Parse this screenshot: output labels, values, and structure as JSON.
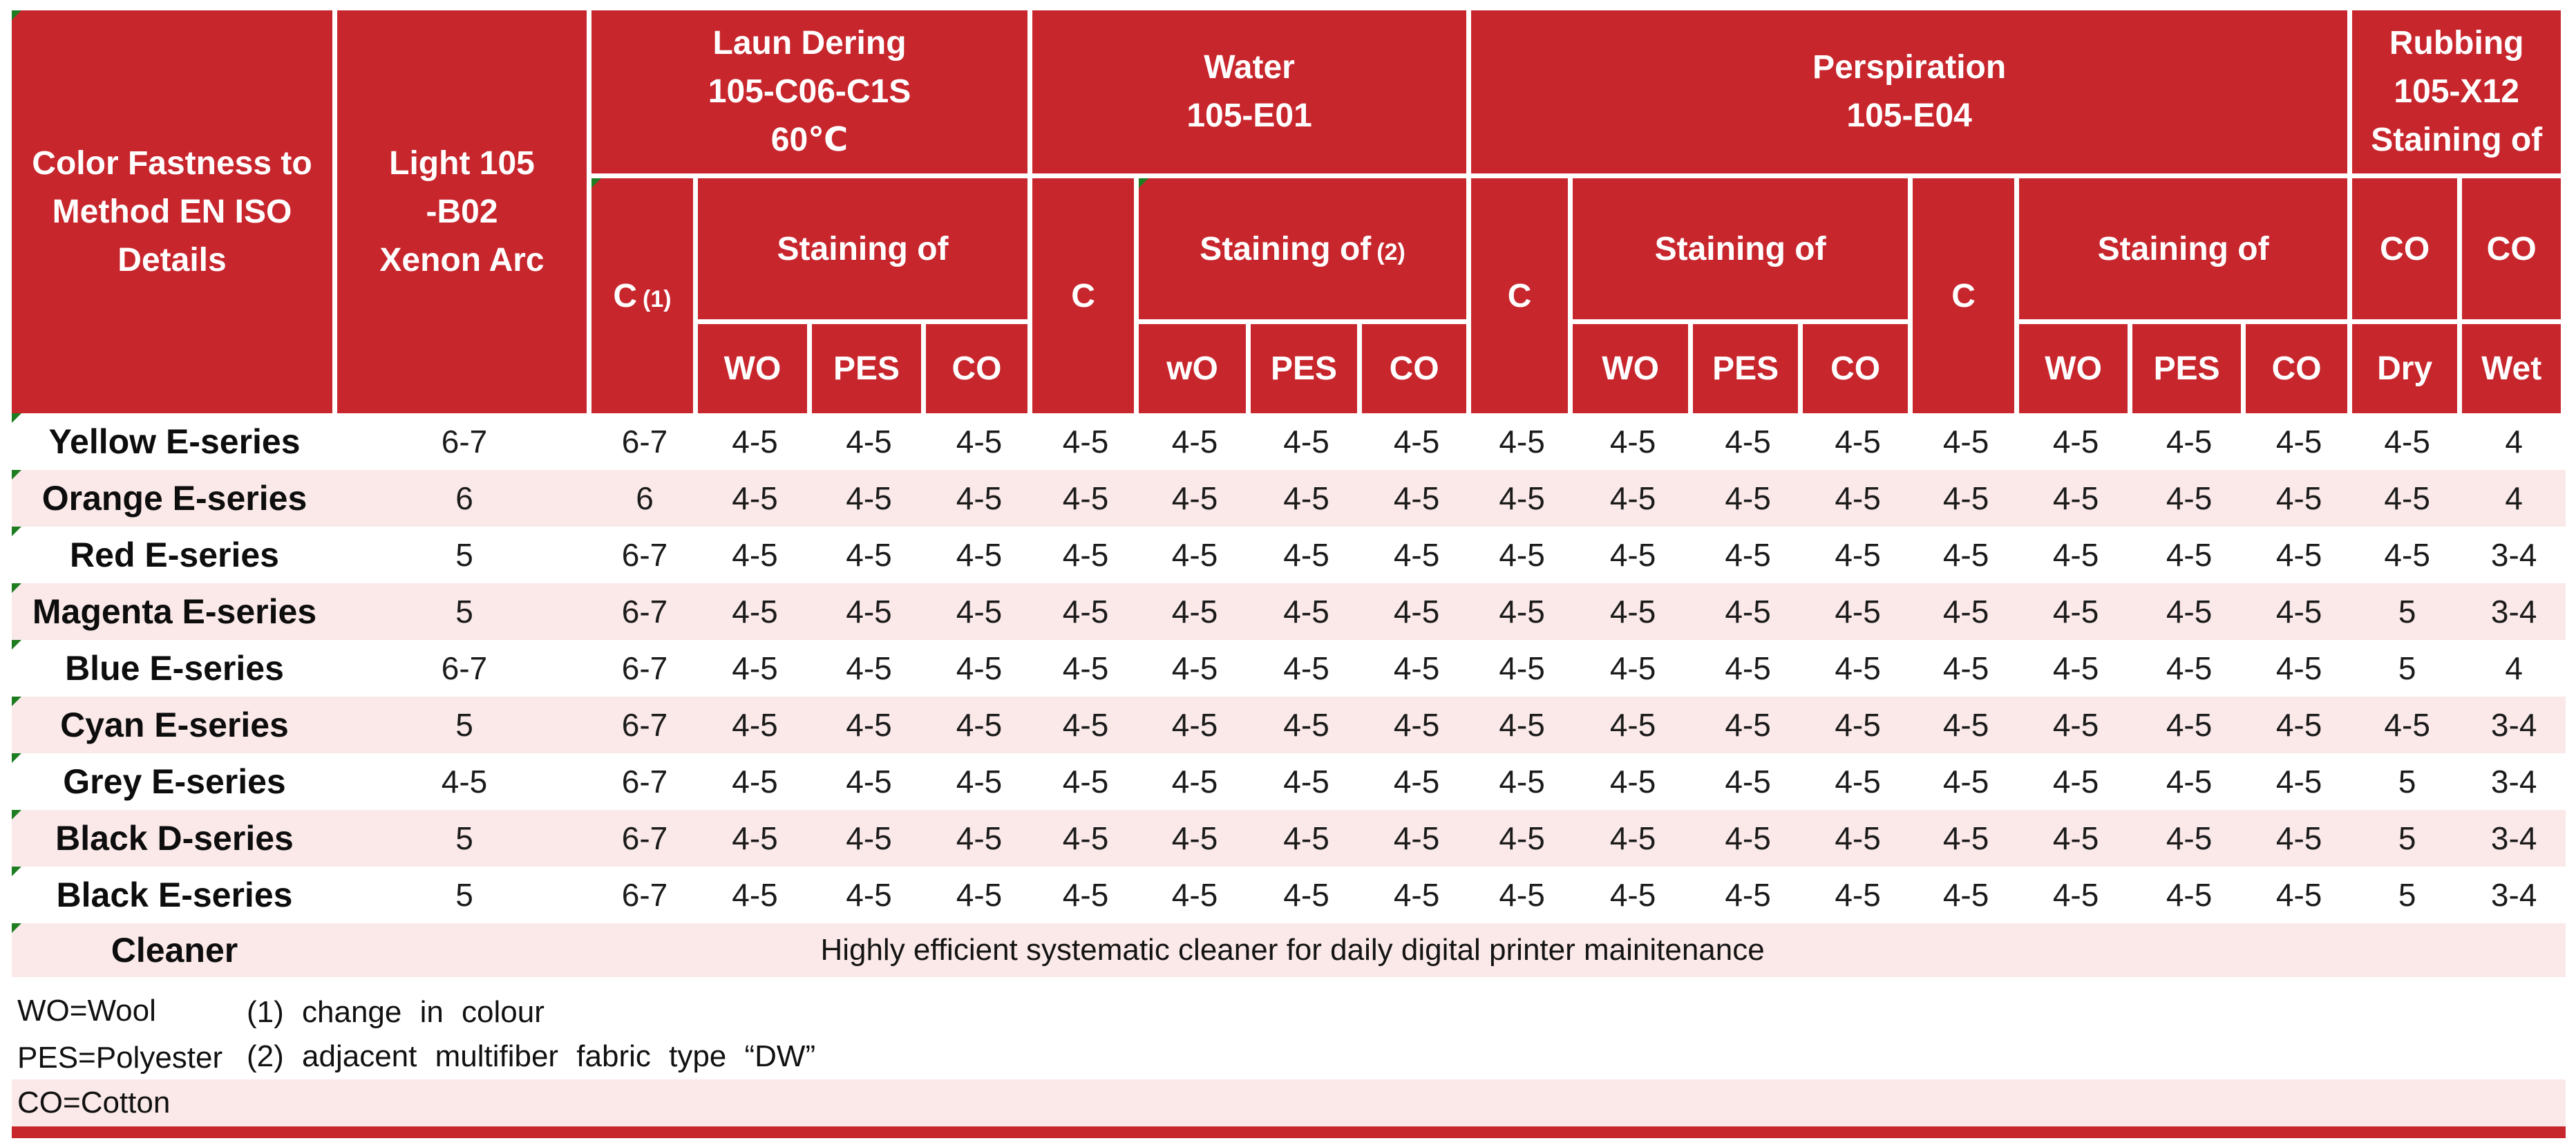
{
  "colors": {
    "header_red": "#C8262D",
    "stripe_pink": "#FAE9E8",
    "flag_green": "#1E7D20",
    "text_dark": "#1b1b1b",
    "header_text": "#ffffff"
  },
  "header": {
    "corner_lines": [
      "Color Fastness to",
      "Method EN ISO",
      "Details"
    ],
    "light_lines": [
      "Light 105",
      "-B02",
      "Xenon Arc"
    ],
    "laundering": {
      "title_lines": [
        "Laun Dering",
        "105-C06-C1S",
        "60℃"
      ],
      "c_label": "C",
      "c_note": "(1)",
      "staining_label": "Staining of",
      "fibers": [
        "WO",
        "PES",
        "CO"
      ]
    },
    "water": {
      "title_lines": [
        "Water",
        "105-E01"
      ],
      "c_label": "C",
      "staining_label": "Staining of",
      "staining_note": "(2)",
      "fibers": [
        "wO",
        "PES",
        "CO"
      ]
    },
    "perspiration": {
      "title_lines": [
        "Perspiration",
        "105-E04"
      ],
      "c_label": "C",
      "staining_label": "Staining of",
      "fibers": [
        "WO",
        "PES",
        "CO"
      ],
      "c2_label": "C",
      "staining2_label": "Staining of",
      "fibers2": [
        "WO",
        "PES",
        "CO"
      ]
    },
    "rubbing": {
      "title_lines": [
        "Rubbing",
        "105-X12",
        "Staining of"
      ],
      "co_dry": "CO",
      "co_wet": "CO",
      "dry": "Dry",
      "wet": "Wet"
    }
  },
  "rows": [
    {
      "label": "Yellow E-series",
      "values": [
        "6-7",
        "6-7",
        "4-5",
        "4-5",
        "4-5",
        "4-5",
        "4-5",
        "4-5",
        "4-5",
        "4-5",
        "4-5",
        "4-5",
        "4-5",
        "4-5",
        "4-5",
        "4-5",
        "4-5",
        "4-5",
        "4"
      ]
    },
    {
      "label": "Orange E-series",
      "values": [
        "6",
        "6",
        "4-5",
        "4-5",
        "4-5",
        "4-5",
        "4-5",
        "4-5",
        "4-5",
        "4-5",
        "4-5",
        "4-5",
        "4-5",
        "4-5",
        "4-5",
        "4-5",
        "4-5",
        "4-5",
        "4"
      ]
    },
    {
      "label": "Red E-series",
      "values": [
        "5",
        "6-7",
        "4-5",
        "4-5",
        "4-5",
        "4-5",
        "4-5",
        "4-5",
        "4-5",
        "4-5",
        "4-5",
        "4-5",
        "4-5",
        "4-5",
        "4-5",
        "4-5",
        "4-5",
        "4-5",
        "3-4"
      ]
    },
    {
      "label": "Magenta E-series",
      "values": [
        "5",
        "6-7",
        "4-5",
        "4-5",
        "4-5",
        "4-5",
        "4-5",
        "4-5",
        "4-5",
        "4-5",
        "4-5",
        "4-5",
        "4-5",
        "4-5",
        "4-5",
        "4-5",
        "4-5",
        "5",
        "3-4"
      ]
    },
    {
      "label": "Blue E-series",
      "values": [
        "6-7",
        "6-7",
        "4-5",
        "4-5",
        "4-5",
        "4-5",
        "4-5",
        "4-5",
        "4-5",
        "4-5",
        "4-5",
        "4-5",
        "4-5",
        "4-5",
        "4-5",
        "4-5",
        "4-5",
        "5",
        "4"
      ]
    },
    {
      "label": "Cyan E-series",
      "values": [
        "5",
        "6-7",
        "4-5",
        "4-5",
        "4-5",
        "4-5",
        "4-5",
        "4-5",
        "4-5",
        "4-5",
        "4-5",
        "4-5",
        "4-5",
        "4-5",
        "4-5",
        "4-5",
        "4-5",
        "4-5",
        "3-4"
      ]
    },
    {
      "label": "Grey E-series",
      "values": [
        "4-5",
        "6-7",
        "4-5",
        "4-5",
        "4-5",
        "4-5",
        "4-5",
        "4-5",
        "4-5",
        "4-5",
        "4-5",
        "4-5",
        "4-5",
        "4-5",
        "4-5",
        "4-5",
        "4-5",
        "5",
        "3-4"
      ]
    },
    {
      "label": "Black D-series",
      "values": [
        "5",
        "6-7",
        "4-5",
        "4-5",
        "4-5",
        "4-5",
        "4-5",
        "4-5",
        "4-5",
        "4-5",
        "4-5",
        "4-5",
        "4-5",
        "4-5",
        "4-5",
        "4-5",
        "4-5",
        "5",
        "3-4"
      ]
    },
    {
      "label": "Black E-series",
      "values": [
        "5",
        "6-7",
        "4-5",
        "4-5",
        "4-5",
        "4-5",
        "4-5",
        "4-5",
        "4-5",
        "4-5",
        "4-5",
        "4-5",
        "4-5",
        "4-5",
        "4-5",
        "4-5",
        "4-5",
        "5",
        "3-4"
      ]
    }
  ],
  "cleaner_row": {
    "label": "Cleaner",
    "description": "Highly efficient systematic cleaner for daily digital printer mainitenance"
  },
  "footnotes": {
    "wo": "WO=Wool",
    "pes": "PES=Polyester",
    "co": "CO=Cotton",
    "note1": "(1) change in colour",
    "note2": "(2) adjacent multifiber fabric type “DW”"
  }
}
